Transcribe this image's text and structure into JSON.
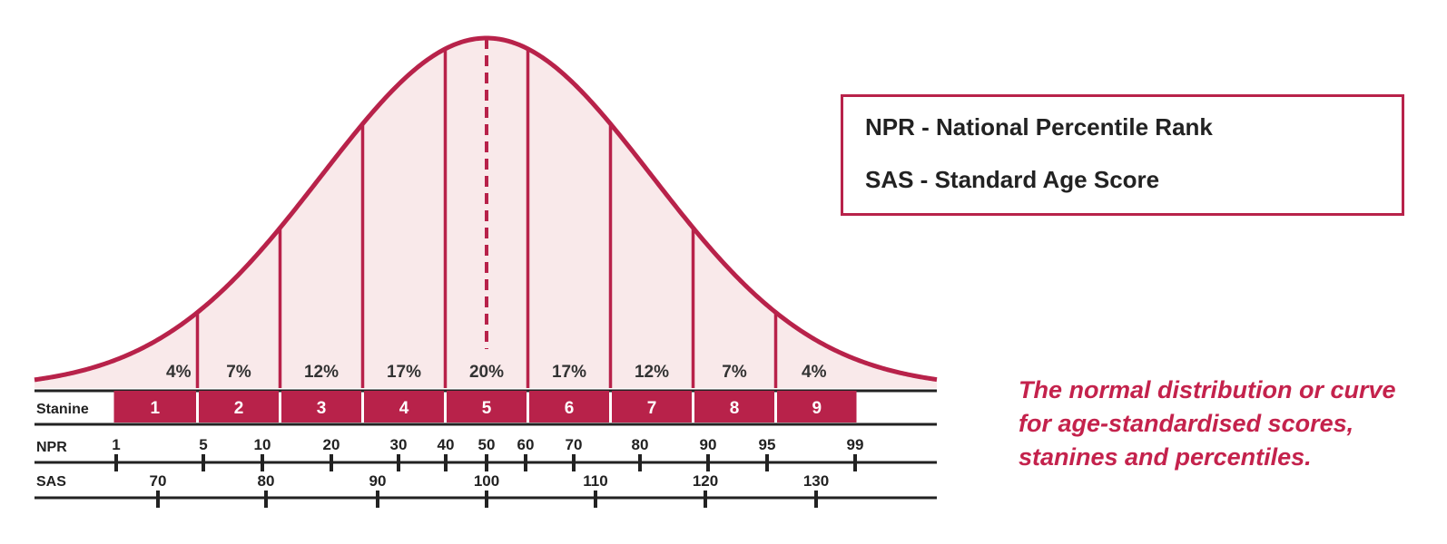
{
  "legend": {
    "npr_line": "NPR - National Percentile Rank",
    "sas_line": "SAS - Standard Age Score"
  },
  "caption": "The normal distribution or curve for age-standardised scores, stanines and percentiles.",
  "row_labels": {
    "stanine": "Stanine",
    "npr": "NPR",
    "sas": "SAS"
  },
  "colors": {
    "accent": "#b8224a",
    "fill": "#f9e9ea",
    "caption": "#c4224c",
    "tick": "#222222"
  },
  "chart_data": {
    "type": "area",
    "title": "",
    "distribution": "normal",
    "stanines": [
      {
        "stanine": "1",
        "percent": "4%"
      },
      {
        "stanine": "2",
        "percent": "7%"
      },
      {
        "stanine": "3",
        "percent": "12%"
      },
      {
        "stanine": "4",
        "percent": "17%"
      },
      {
        "stanine": "5",
        "percent": "20%"
      },
      {
        "stanine": "6",
        "percent": "17%"
      },
      {
        "stanine": "7",
        "percent": "12%"
      },
      {
        "stanine": "8",
        "percent": "7%"
      },
      {
        "stanine": "9",
        "percent": "4%"
      }
    ],
    "npr_ticks": [
      "1",
      "5",
      "10",
      "20",
      "30",
      "40",
      "50",
      "60",
      "70",
      "80",
      "90",
      "95",
      "99"
    ],
    "sas_ticks": [
      "70",
      "80",
      "90",
      "100",
      "110",
      "120",
      "130"
    ]
  }
}
